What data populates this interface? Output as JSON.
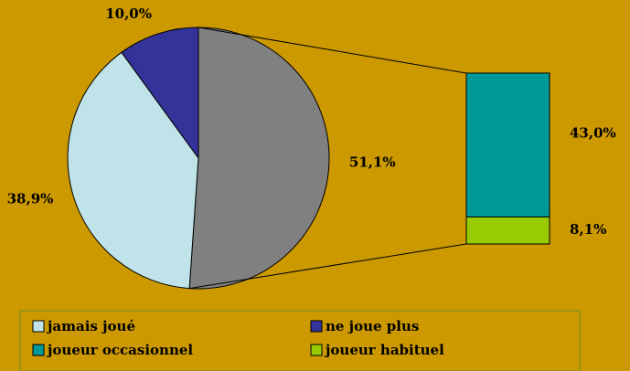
{
  "chart_data": {
    "type": "pie-of-bar",
    "categories": [
      null,
      "jamais joué",
      "ne joue plus"
    ],
    "values": [
      51.1,
      38.9,
      10.0
    ],
    "value_labels": [
      "51,1%",
      "38,9%",
      "10,0%"
    ],
    "colors": [
      "#808080",
      "#bfe3e8",
      "#333399"
    ],
    "bar": {
      "categories": [
        "joueur occasionnel",
        "joueur habituel"
      ],
      "values": [
        43.0,
        8.1
      ],
      "value_labels": [
        "43,0%",
        "8,1%"
      ],
      "colors": [
        "#009999",
        "#99cc00"
      ]
    },
    "legend": "bottom"
  }
}
